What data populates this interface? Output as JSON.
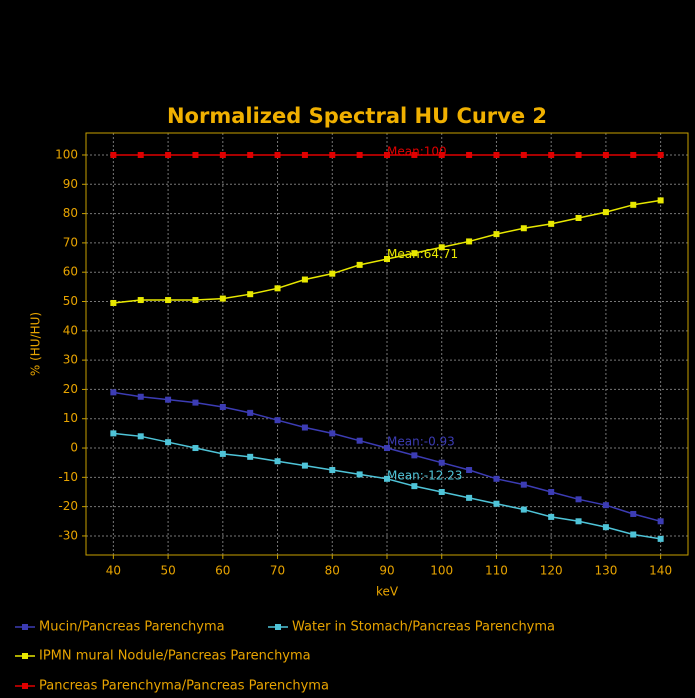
{
  "chart_data": {
    "type": "line",
    "title": "Normalized Spectral HU Curve 2",
    "x_label": "keV",
    "y_label": "% (HU/HU)",
    "x": [
      40,
      45,
      50,
      55,
      60,
      65,
      70,
      75,
      80,
      85,
      90,
      95,
      100,
      105,
      110,
      115,
      120,
      125,
      130,
      135,
      140
    ],
    "series": [
      {
        "name": "Mucin/Pancreas Parenchyma",
        "color": "#3c3cb4",
        "values": [
          19,
          17.5,
          16.5,
          15.5,
          14,
          12,
          9.5,
          7,
          5,
          2.5,
          0,
          -2.5,
          -5,
          -7.5,
          -10.5,
          -12.5,
          -15,
          -17.5,
          -19.5,
          -22.5,
          -25
        ]
      },
      {
        "name": "Water in Stomach/Pancreas Parenchyma",
        "color": "#4fc4d8",
        "values": [
          5,
          4,
          2,
          0,
          -2,
          -3,
          -4.5,
          -6,
          -7.5,
          -9,
          -10.5,
          -13,
          -15,
          -17,
          -19,
          -21,
          -23.5,
          -25,
          -27,
          -29.5,
          -31
        ]
      },
      {
        "name": "IPMN mural Nodule/Pancreas Parenchyma",
        "color": "#e8e800",
        "values": [
          49.5,
          50.5,
          50.5,
          50.5,
          51,
          52.5,
          54.5,
          57.5,
          59.5,
          62.5,
          64.5,
          66.5,
          68.5,
          70.5,
          73,
          75,
          76.5,
          78.5,
          80.5,
          83,
          84.5
        ]
      },
      {
        "name": "Pancreas Parenchyma/Pancreas Parenchyma",
        "color": "#e00000",
        "values": [
          100,
          100,
          100,
          100,
          100,
          100,
          100,
          100,
          100,
          100,
          100,
          100,
          100,
          100,
          100,
          100,
          100,
          100,
          100,
          100,
          100
        ]
      }
    ],
    "annotations": [
      {
        "text": "Mean:100",
        "x": 90,
        "y": 101,
        "color": "#e00000"
      },
      {
        "text": "Mean:64.71",
        "x": 90,
        "y": 66,
        "color": "#e8e800"
      },
      {
        "text": "Mean:-0.93",
        "x": 90,
        "y": 2,
        "color": "#3c3cb4"
      },
      {
        "text": "Mean:-12.23",
        "x": 90,
        "y": -9.5,
        "color": "#4fc4d8"
      }
    ],
    "xlim": [
      35,
      145
    ],
    "ylim": [
      -36.5,
      107.5
    ],
    "xticks": [
      40,
      50,
      60,
      70,
      80,
      90,
      100,
      110,
      120,
      130,
      140
    ],
    "yticks": [
      -30,
      -20,
      -10,
      0,
      10,
      20,
      30,
      40,
      50,
      60,
      70,
      80,
      90,
      100
    ],
    "grid": true,
    "legend": "bottom"
  }
}
